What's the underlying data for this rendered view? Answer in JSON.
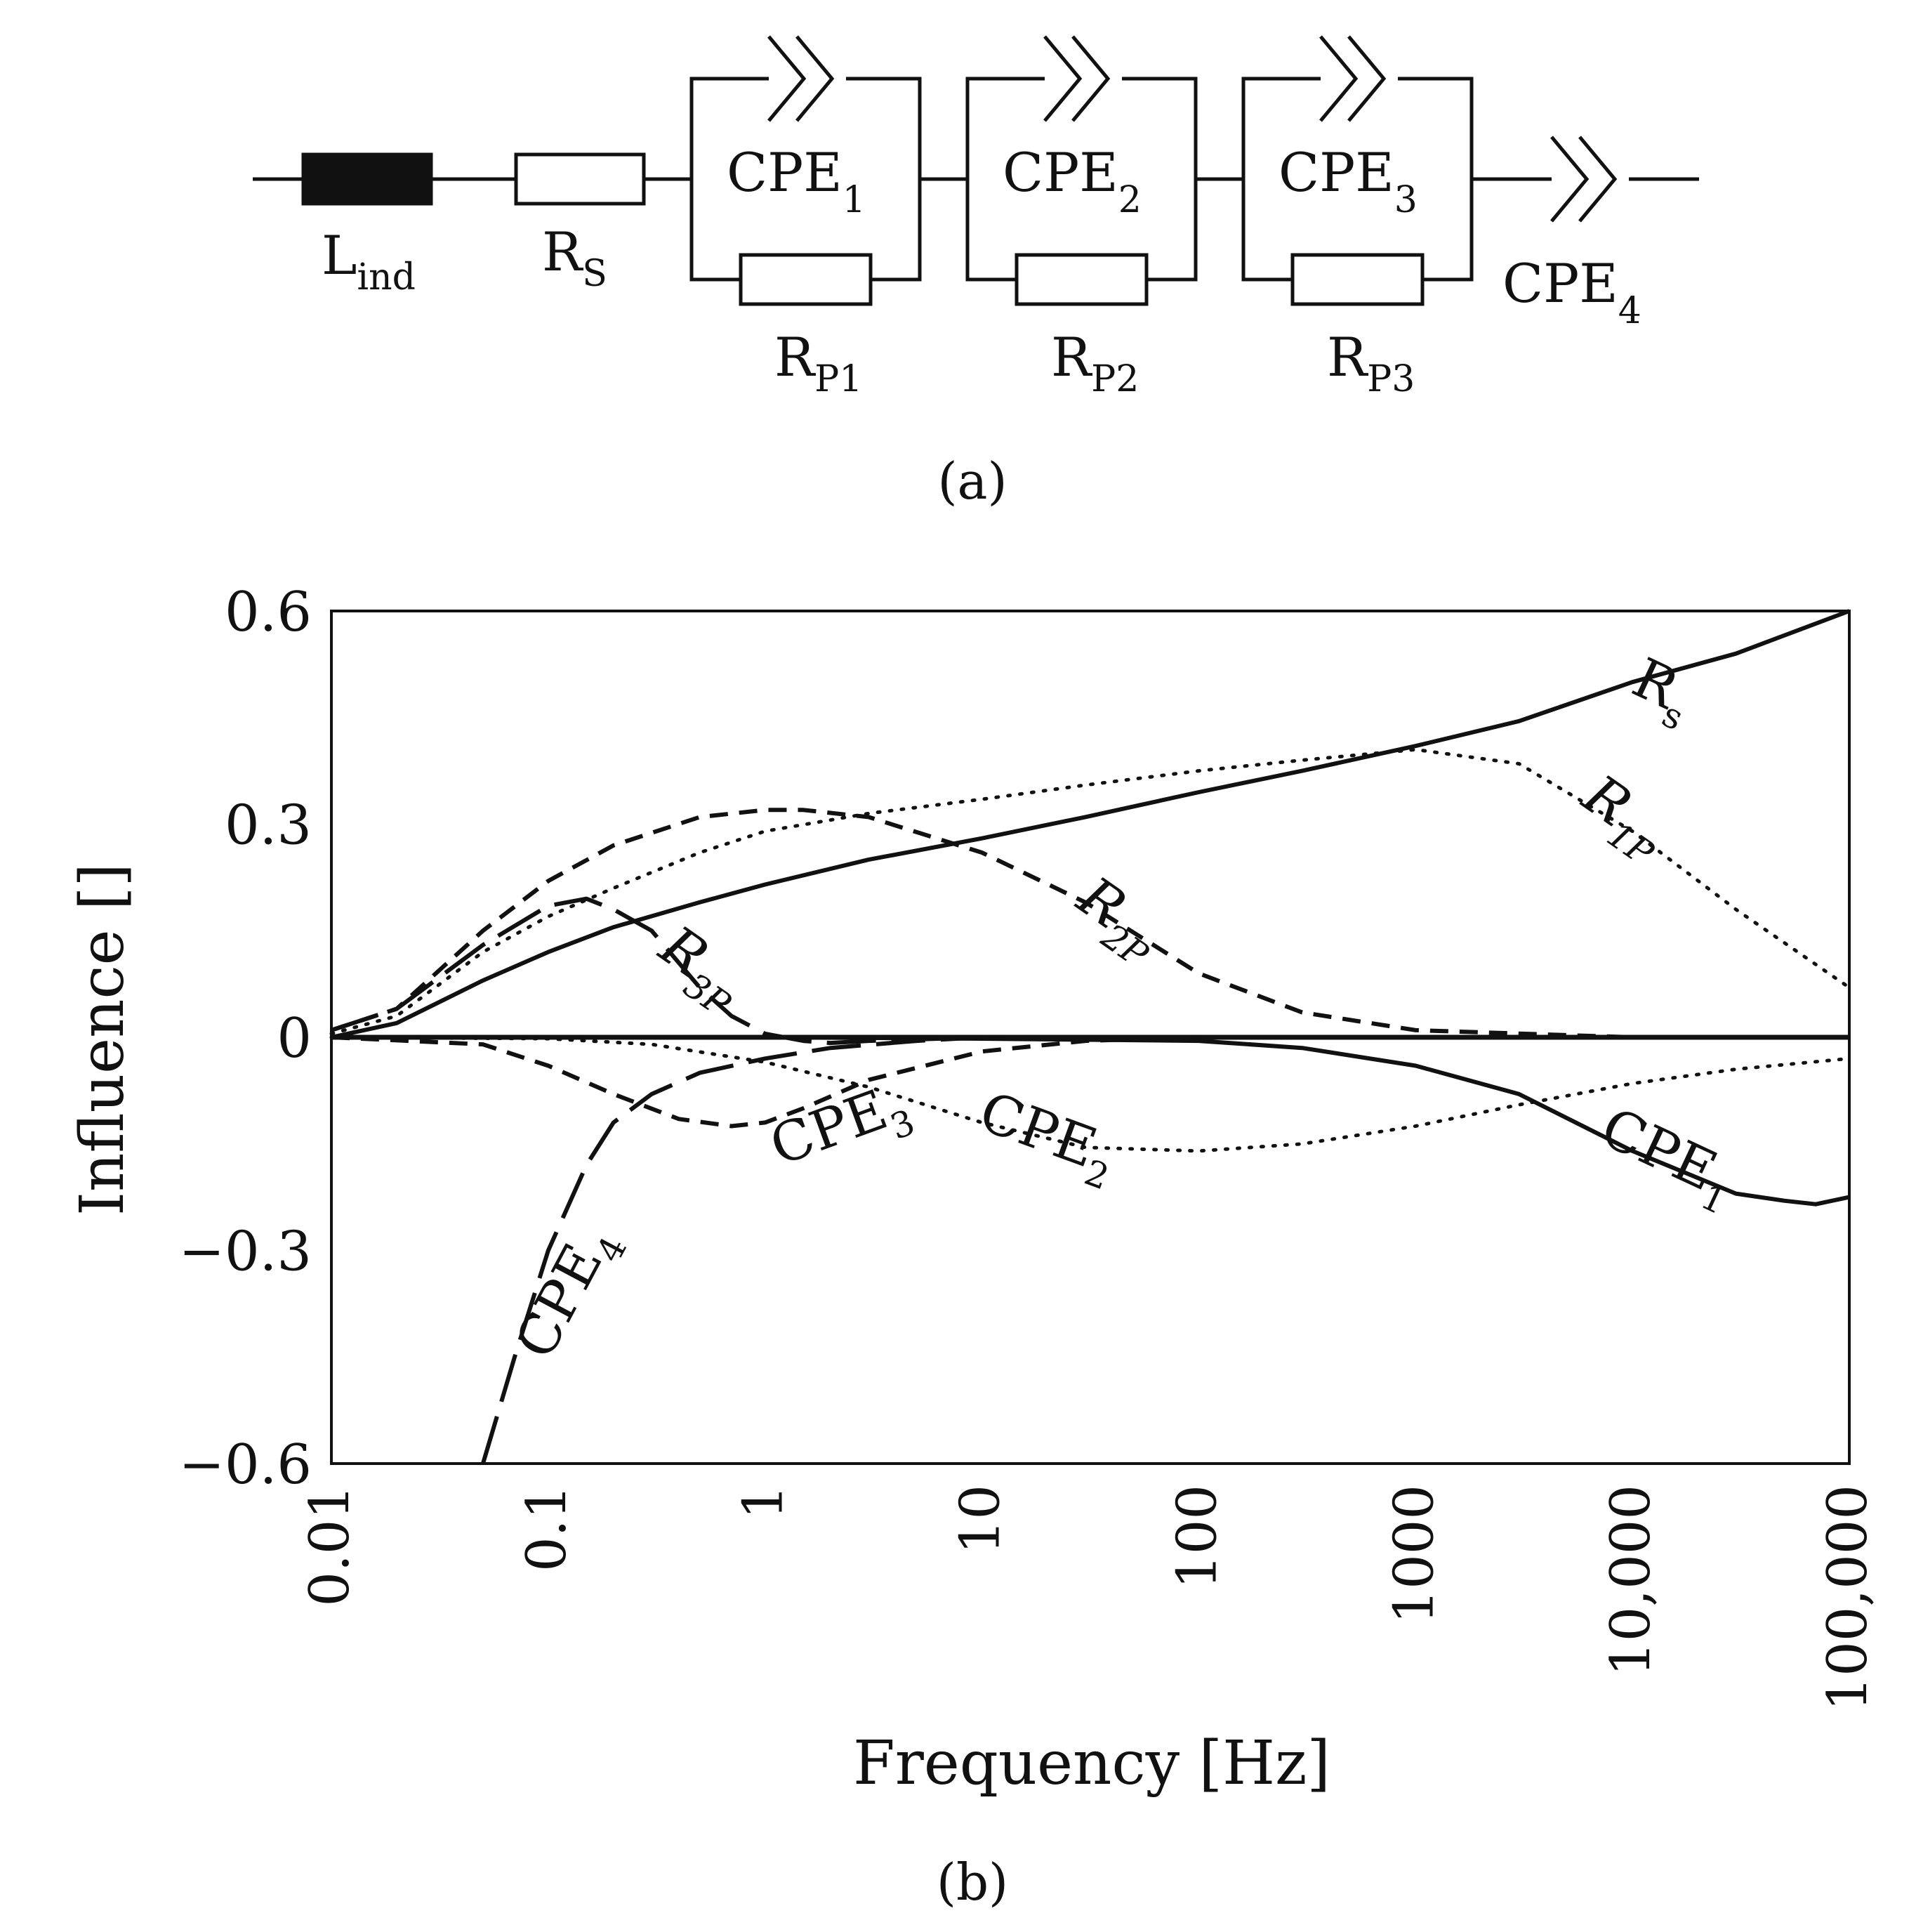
{
  "panel_a": {
    "caption": "(a)",
    "components": [
      {
        "type": "inductor",
        "label": "L",
        "sub": "ind"
      },
      {
        "type": "resistor",
        "label": "R",
        "sub": "S"
      },
      {
        "type": "parallel",
        "cpe": {
          "label": "CPE",
          "sub": "1"
        },
        "res": {
          "label": "R",
          "sub": "P1"
        }
      },
      {
        "type": "parallel",
        "cpe": {
          "label": "CPE",
          "sub": "2"
        },
        "res": {
          "label": "R",
          "sub": "P2"
        }
      },
      {
        "type": "parallel",
        "cpe": {
          "label": "CPE",
          "sub": "3"
        },
        "res": {
          "label": "R",
          "sub": "P3"
        }
      },
      {
        "type": "cpe",
        "label": "CPE",
        "sub": "4"
      }
    ]
  },
  "panel_b": {
    "caption": "(b)"
  },
  "chart_data": {
    "type": "line",
    "title": "",
    "xlabel": "Frequency [Hz]",
    "ylabel": "Influence []",
    "xscale": "log",
    "xlim": [
      0.01,
      100000
    ],
    "ylim": [
      -0.6,
      0.6
    ],
    "xticks": [
      0.01,
      0.1,
      1,
      10,
      100,
      1000,
      10000,
      100000
    ],
    "xtick_labels": [
      "0.01",
      "0.1",
      "1",
      "10",
      "100",
      "1000",
      "10,000",
      "100,000"
    ],
    "yticks": [
      0.6,
      0.3,
      0,
      -0.3,
      -0.6
    ],
    "ytick_labels": [
      "0.6",
      "0.3",
      "0",
      "−0.3",
      "−0.6"
    ],
    "zero_line": true,
    "series": [
      {
        "name": "Rs",
        "label": "R",
        "sub": "s",
        "style": "solid",
        "x": [
          0.01,
          0.02,
          0.05,
          0.1,
          0.2,
          0.5,
          1,
          3,
          10,
          30,
          100,
          300,
          1000,
          3000,
          10000,
          30000,
          100000
        ],
        "y": [
          0.0,
          0.02,
          0.08,
          0.12,
          0.155,
          0.19,
          0.215,
          0.25,
          0.28,
          0.31,
          0.345,
          0.375,
          0.41,
          0.445,
          0.5,
          0.54,
          0.62
        ]
      },
      {
        "name": "R1P",
        "label": "R",
        "sub": "1P",
        "style": "dotted",
        "x": [
          0.01,
          0.02,
          0.05,
          0.1,
          0.2,
          0.5,
          1,
          3,
          10,
          30,
          100,
          300,
          1000,
          3000,
          10000,
          30000,
          100000
        ],
        "y": [
          0.005,
          0.03,
          0.12,
          0.17,
          0.21,
          0.26,
          0.29,
          0.315,
          0.335,
          0.355,
          0.375,
          0.39,
          0.405,
          0.385,
          0.29,
          0.18,
          0.07
        ]
      },
      {
        "name": "R2P",
        "label": "R",
        "sub": "2P",
        "style": "dashed",
        "x": [
          0.01,
          0.02,
          0.05,
          0.1,
          0.2,
          0.5,
          1,
          1.5,
          3,
          10,
          30,
          100,
          300,
          1000,
          10000,
          100000
        ],
        "y": [
          0.01,
          0.04,
          0.15,
          0.22,
          0.27,
          0.31,
          0.32,
          0.32,
          0.31,
          0.26,
          0.19,
          0.09,
          0.035,
          0.01,
          0.0,
          0.0
        ]
      },
      {
        "name": "R3P",
        "label": "R",
        "sub": "3P",
        "style": "longdash",
        "x": [
          0.01,
          0.02,
          0.05,
          0.1,
          0.15,
          0.2,
          0.3,
          0.5,
          0.7,
          1,
          1.5,
          2,
          3,
          10,
          100,
          100000
        ],
        "y": [
          0.01,
          0.04,
          0.13,
          0.185,
          0.195,
          0.18,
          0.15,
          0.07,
          0.03,
          0.005,
          -0.005,
          -0.008,
          -0.005,
          0.0,
          0.0,
          0.0
        ]
      },
      {
        "name": "CPE1",
        "label": "CPE",
        "sub": "1",
        "style": "solid",
        "x": [
          0.01,
          1,
          10,
          100,
          300,
          1000,
          3000,
          10000,
          30000,
          50000,
          70000,
          100000
        ],
        "y": [
          0.0,
          0.0,
          -0.002,
          -0.005,
          -0.015,
          -0.04,
          -0.08,
          -0.16,
          -0.22,
          -0.23,
          -0.235,
          -0.225
        ]
      },
      {
        "name": "CPE2",
        "label": "CPE",
        "sub": "2",
        "style": "dotted",
        "x": [
          0.01,
          0.1,
          0.3,
          1,
          3,
          10,
          30,
          100,
          300,
          1000,
          3000,
          10000,
          30000,
          100000
        ],
        "y": [
          0.0,
          -0.002,
          -0.01,
          -0.035,
          -0.07,
          -0.12,
          -0.155,
          -0.16,
          -0.15,
          -0.125,
          -0.095,
          -0.065,
          -0.045,
          -0.03
        ]
      },
      {
        "name": "CPE3",
        "label": "CPE",
        "sub": "3",
        "style": "dashed",
        "x": [
          0.01,
          0.05,
          0.1,
          0.2,
          0.4,
          0.7,
          1,
          1.5,
          3,
          10,
          30,
          100,
          100000
        ],
        "y": [
          0.0,
          -0.01,
          -0.04,
          -0.08,
          -0.115,
          -0.125,
          -0.12,
          -0.1,
          -0.06,
          -0.02,
          -0.005,
          0.0,
          0.0
        ]
      },
      {
        "name": "CPE4",
        "label": "CPE",
        "sub": "4",
        "style": "longdash",
        "x": [
          0.05,
          0.07,
          0.1,
          0.15,
          0.2,
          0.3,
          0.5,
          1,
          2,
          5,
          10,
          100,
          100000
        ],
        "y": [
          -0.6,
          -0.45,
          -0.3,
          -0.18,
          -0.12,
          -0.08,
          -0.05,
          -0.03,
          -0.015,
          -0.005,
          0.0,
          0.0,
          0.0
        ]
      }
    ]
  }
}
